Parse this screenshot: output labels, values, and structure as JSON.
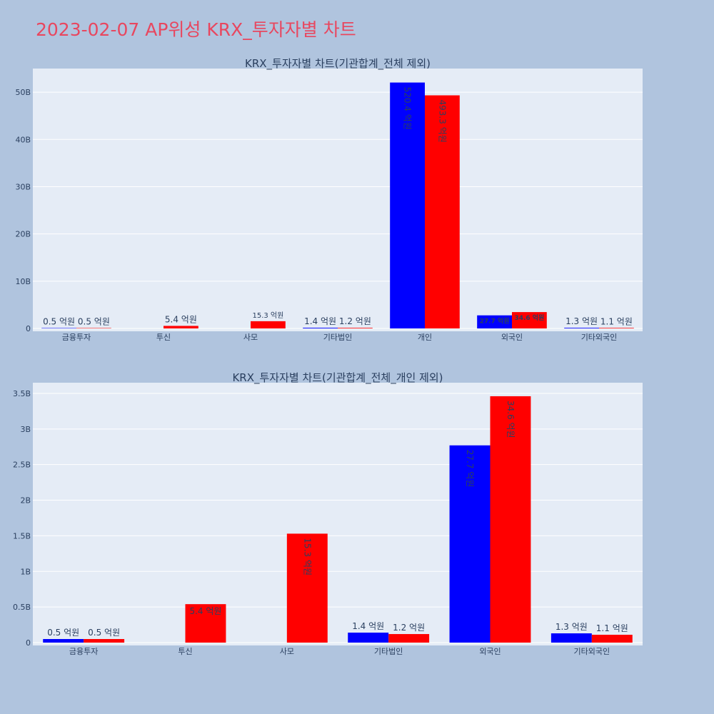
{
  "page": {
    "title": "2023-02-07 AP위성 KRX_투자자별 차트"
  },
  "colors": {
    "background": "#b0c4de",
    "plot_background": "#e5ecf6",
    "grid": "#ffffff",
    "title": "#e8475f",
    "text": "#2a3f5f",
    "series_a": "#0000ff",
    "series_b": "#ff0000"
  },
  "chart_data": [
    {
      "type": "bar",
      "title": "KRX_투자자별 차트(기관합계_전체 제외)",
      "categories": [
        "금융투자",
        "투신",
        "사모",
        "기타법인",
        "개인",
        "외국인",
        "기타외국인"
      ],
      "series": [
        {
          "color": "#0000ff",
          "values": [
            50000000,
            null,
            null,
            140000000,
            52040000000,
            2770000000,
            130000000
          ],
          "labels": [
            "0.5 억원",
            null,
            null,
            "1.4 억원",
            "520.4 억원",
            "27.7 억원",
            "1.3 억원"
          ]
        },
        {
          "color": "#ff0000",
          "values": [
            50000000,
            540000000,
            1530000000,
            120000000,
            49330000000,
            3460000000,
            110000000
          ],
          "labels": [
            "0.5 억원",
            "5.4 억원",
            "15.3 억원",
            "1.2 억원",
            "493.3 억원",
            "34.6 억원",
            "1.1 억원"
          ]
        }
      ],
      "ylim": [
        0,
        55000000000
      ],
      "yticks": [
        0,
        10000000000,
        20000000000,
        30000000000,
        40000000000,
        50000000000
      ],
      "ytick_labels": [
        "0",
        "10B",
        "20B",
        "30B",
        "40B",
        "50B"
      ],
      "grid": true,
      "xlabel": "",
      "ylabel": ""
    },
    {
      "type": "bar",
      "title": "KRX_투자자별 차트(기관합계_전체_개인 제외)",
      "categories": [
        "금융투자",
        "투신",
        "사모",
        "기타법인",
        "외국인",
        "기타외국인"
      ],
      "series": [
        {
          "color": "#0000ff",
          "values": [
            50000000,
            null,
            null,
            140000000,
            2770000000,
            130000000
          ],
          "labels": [
            "0.5 억원",
            null,
            null,
            "1.4 억원",
            "27.7 억원",
            "1.3 억원"
          ]
        },
        {
          "color": "#ff0000",
          "values": [
            50000000,
            540000000,
            1530000000,
            120000000,
            3460000000,
            110000000
          ],
          "labels": [
            "0.5 억원",
            "5.4 억원",
            "15.3 억원",
            "1.2 억원",
            "34.6 억원",
            "1.1 억원"
          ]
        }
      ],
      "ylim": [
        0,
        3650000000
      ],
      "yticks": [
        0,
        500000000,
        1000000000,
        1500000000,
        2000000000,
        2500000000,
        3000000000,
        3500000000
      ],
      "ytick_labels": [
        "0",
        "0.5B",
        "1B",
        "1.5B",
        "2B",
        "2.5B",
        "3B",
        "3.5B"
      ],
      "grid": true,
      "xlabel": "",
      "ylabel": ""
    }
  ]
}
